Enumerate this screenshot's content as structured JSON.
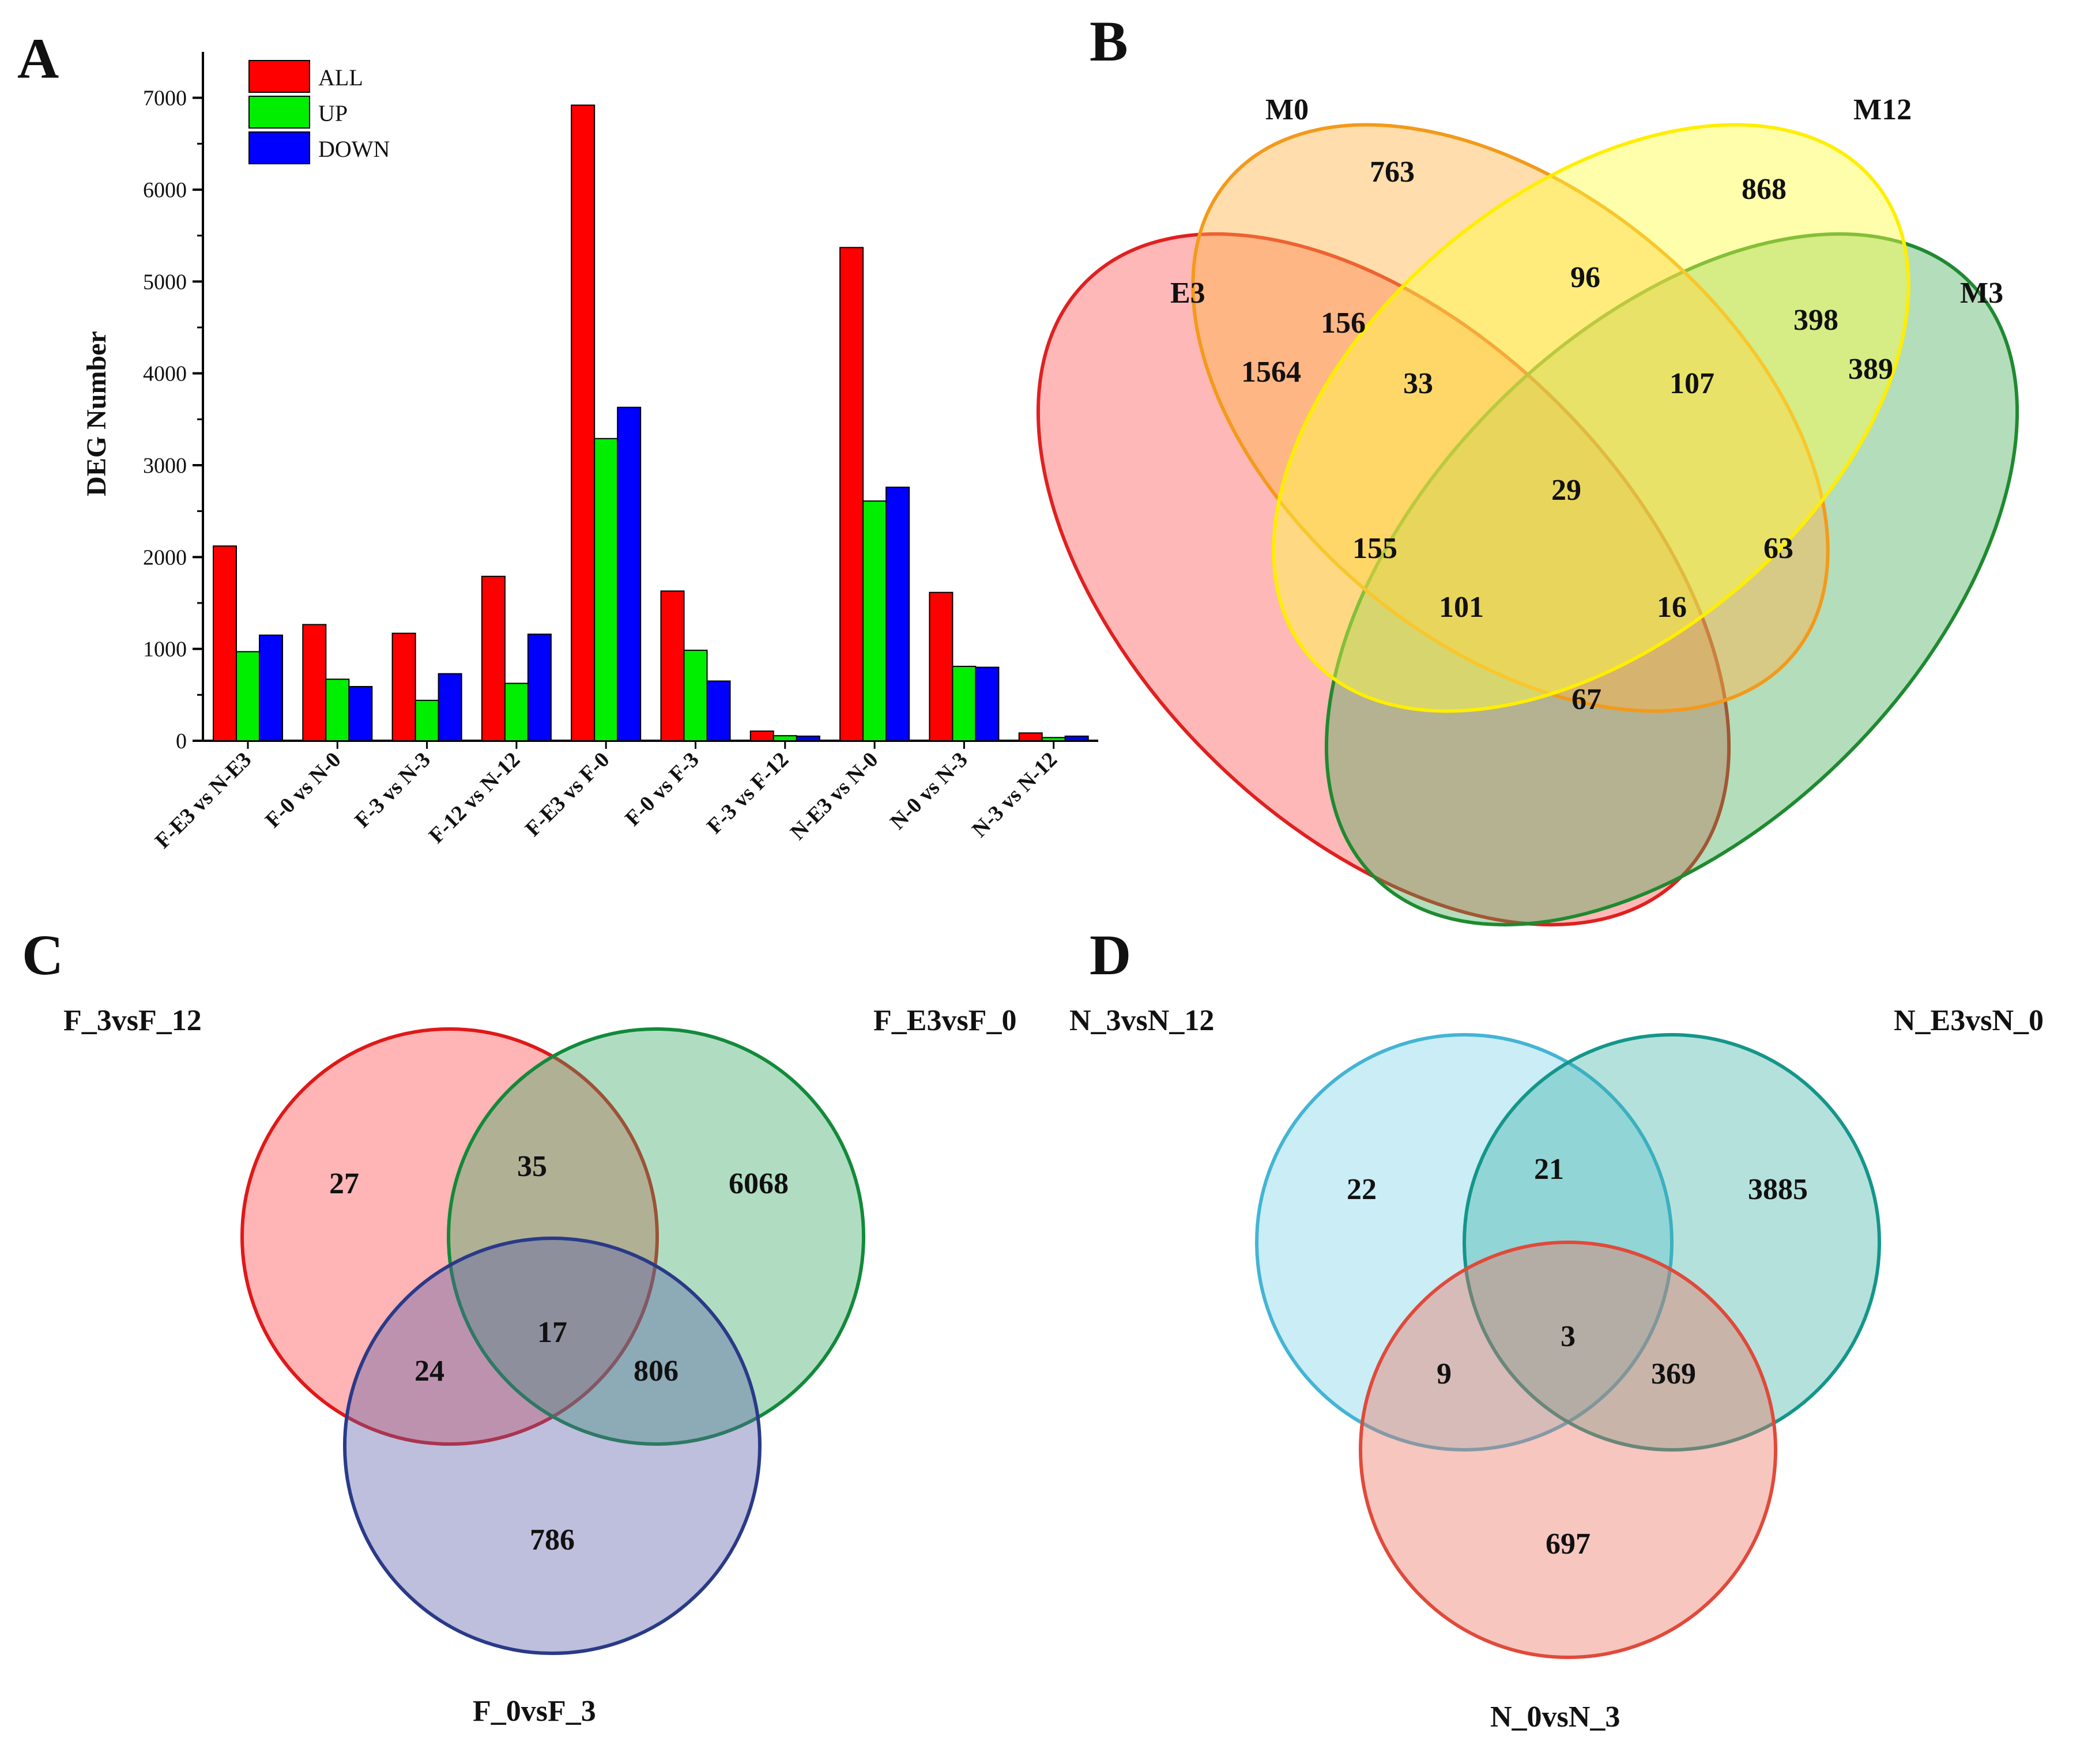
{
  "panels": {
    "a": {
      "letter": "A"
    },
    "b": {
      "letter": "B"
    },
    "c": {
      "letter": "C"
    },
    "d": {
      "letter": "D"
    }
  },
  "colors": {
    "all": "#ff0000",
    "up": "#00ee00",
    "down": "#0000ff"
  },
  "chart_data": [
    {
      "type": "bar",
      "panel": "A",
      "title": "",
      "xlabel": "",
      "ylabel": "DEG Number",
      "ylim": [
        0,
        7500
      ],
      "yticks": [
        0,
        1000,
        2000,
        3000,
        4000,
        5000,
        6000,
        7000
      ],
      "legend_position": "top-left",
      "categories": [
        "F-E3 vs N-E3",
        "F-0 vs N-0",
        "F-3 vs N-3",
        "F-12 vs N-12",
        "F-E3 vs F-0",
        "F-0 vs F-3",
        "F-3 vs F-12",
        "N-E3 vs N-0",
        "N-0 vs N-3",
        "N-3 vs N-12"
      ],
      "series": [
        {
          "name": "ALL",
          "color": "#ff0000",
          "values": [
            2120,
            1265,
            1170,
            1790,
            6920,
            1630,
            105,
            5370,
            1615,
            85
          ]
        },
        {
          "name": "UP",
          "color": "#00ee00",
          "values": [
            970,
            670,
            440,
            625,
            3290,
            985,
            55,
            2610,
            810,
            35
          ]
        },
        {
          "name": "DOWN",
          "color": "#0000ff",
          "values": [
            1150,
            590,
            730,
            1160,
            3630,
            650,
            50,
            2760,
            800,
            50
          ]
        }
      ]
    },
    {
      "type": "venn",
      "panel": "B",
      "sets": [
        {
          "name": "E3",
          "color": "#ff4d4d"
        },
        {
          "name": "M0",
          "color": "#ffb347"
        },
        {
          "name": "M12",
          "color": "#ffff44"
        },
        {
          "name": "M3",
          "color": "#44aa55"
        }
      ],
      "regions": [
        {
          "key": "m0_only",
          "value": "763"
        },
        {
          "key": "m12_only",
          "value": "868"
        },
        {
          "key": "m0_m12",
          "value": "96"
        },
        {
          "key": "e3_m0",
          "value": "156"
        },
        {
          "key": "m12_m3",
          "value": "398"
        },
        {
          "key": "e3_only",
          "value": "1564"
        },
        {
          "key": "e3_m0_m12",
          "value": "33"
        },
        {
          "key": "m0_m12_m3",
          "value": "107"
        },
        {
          "key": "m3_only",
          "value": "389"
        },
        {
          "key": "all_four",
          "value": "29"
        },
        {
          "key": "e3_m0_m12b",
          "value": "155"
        },
        {
          "key": "m0_m3",
          "value": "63"
        },
        {
          "key": "e3_m12_m3",
          "value": "101"
        },
        {
          "key": "e3_m0_m3",
          "value": "16"
        },
        {
          "key": "e3_m3",
          "value": "67"
        }
      ]
    },
    {
      "type": "venn",
      "panel": "C",
      "sets": [
        {
          "name": "F_3vsF_12",
          "color": "#ff5a5a"
        },
        {
          "name": "F_E3vsF_0",
          "color": "#3aaa66"
        },
        {
          "name": "F_0vsF_3",
          "color": "#5a5fa8"
        }
      ],
      "regions": [
        {
          "key": "a_only",
          "value": "27"
        },
        {
          "key": "ab",
          "value": "35"
        },
        {
          "key": "b_only",
          "value": "6068"
        },
        {
          "key": "abc",
          "value": "17"
        },
        {
          "key": "ac",
          "value": "24"
        },
        {
          "key": "bc",
          "value": "806"
        },
        {
          "key": "c_only",
          "value": "786"
        }
      ]
    },
    {
      "type": "venn",
      "panel": "D",
      "sets": [
        {
          "name": "N_3vsN_12",
          "color": "#66cce6"
        },
        {
          "name": "N_E3vsN_0",
          "color": "#2aa89a"
        },
        {
          "name": "N_0vsN_3",
          "color": "#e87060"
        }
      ],
      "regions": [
        {
          "key": "a_only",
          "value": "22"
        },
        {
          "key": "ab",
          "value": "21"
        },
        {
          "key": "b_only",
          "value": "3885"
        },
        {
          "key": "abc",
          "value": "3"
        },
        {
          "key": "ac",
          "value": "9"
        },
        {
          "key": "bc",
          "value": "369"
        },
        {
          "key": "c_only",
          "value": "697"
        }
      ]
    }
  ]
}
